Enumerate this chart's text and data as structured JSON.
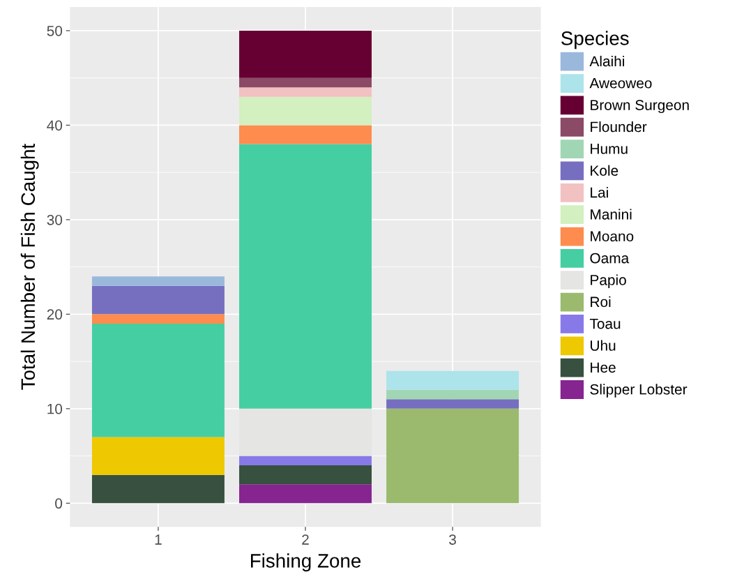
{
  "chart_data": {
    "type": "bar",
    "stacked": true,
    "xlabel": "Fishing Zone",
    "ylabel": "Total Number of Fish Caught",
    "legend_title": "Species",
    "legend": "right",
    "categories": [
      "1",
      "2",
      "3"
    ],
    "ylim": [
      -2.5,
      52.5
    ],
    "yticks": [
      0,
      10,
      20,
      30,
      40,
      50
    ],
    "grid": true,
    "series": [
      {
        "name": "Slipper Lobster",
        "color": "#862590",
        "values": [
          null,
          2,
          null
        ]
      },
      {
        "name": "Hee",
        "color": "#37503f",
        "values": [
          3,
          2,
          null
        ]
      },
      {
        "name": "Uhu",
        "color": "#eec800",
        "values": [
          4,
          null,
          null
        ]
      },
      {
        "name": "Toau",
        "color": "#877ae8",
        "values": [
          null,
          1,
          null
        ]
      },
      {
        "name": "Roi",
        "color": "#9bba6e",
        "values": [
          null,
          null,
          10
        ]
      },
      {
        "name": "Papio",
        "color": "#e5e5e3",
        "values": [
          null,
          5,
          null
        ]
      },
      {
        "name": "Oama",
        "color": "#45cea2",
        "values": [
          12,
          28,
          null
        ]
      },
      {
        "name": "Moano",
        "color": "#fd8c4e",
        "values": [
          1,
          2,
          null
        ]
      },
      {
        "name": "Manini",
        "color": "#d3f0c0",
        "values": [
          null,
          3,
          null
        ]
      },
      {
        "name": "Lai",
        "color": "#f2c1c1",
        "values": [
          null,
          1,
          null
        ]
      },
      {
        "name": "Kole",
        "color": "#766fc0",
        "values": [
          3,
          null,
          1
        ]
      },
      {
        "name": "Humu",
        "color": "#a1d6b5",
        "values": [
          null,
          null,
          1
        ]
      },
      {
        "name": "Flounder",
        "color": "#8b4a66",
        "values": [
          null,
          1,
          null
        ]
      },
      {
        "name": "Brown Surgeon",
        "color": "#660033",
        "values": [
          null,
          5,
          null
        ]
      },
      {
        "name": "Aweoweo",
        "color": "#ade3ea",
        "values": [
          null,
          null,
          2
        ]
      },
      {
        "name": "Alaihi",
        "color": "#9ab8dc",
        "values": [
          1,
          null,
          null
        ]
      }
    ]
  }
}
